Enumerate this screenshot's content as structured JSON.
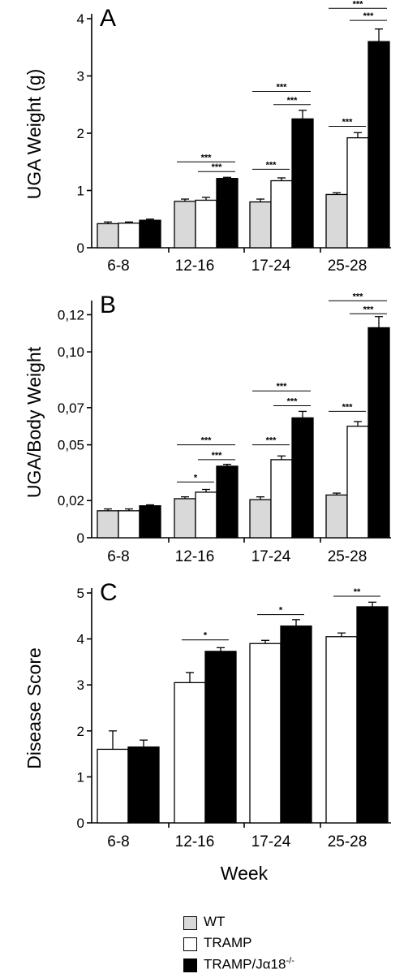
{
  "colors": {
    "wt": "#d9d9d9",
    "tramp": "#ffffff",
    "tramp_ja18": "#000000"
  },
  "legend": {
    "items": [
      {
        "key": "wt",
        "label": "WT",
        "sup": ""
      },
      {
        "key": "tramp",
        "label": "TRAMP",
        "sup": ""
      },
      {
        "key": "tramp_ja18",
        "label": "TRAMP/Jα18",
        "sup": "-/-"
      }
    ]
  },
  "chart_data": [
    {
      "type": "bar",
      "panel_label": "A",
      "ylabel": "UGA Weight (g)",
      "xlabel": "",
      "ylim": [
        0,
        4
      ],
      "yticks": [
        0,
        1,
        2,
        3,
        4
      ],
      "ytick_labels": [
        "0",
        "1",
        "2",
        "3",
        "4"
      ],
      "categories": [
        "6-8",
        "12-16",
        "17-24",
        "25-28"
      ],
      "series": [
        {
          "key": "wt",
          "name": "WT",
          "values": [
            0.42,
            0.81,
            0.8,
            0.93
          ],
          "errors": [
            0.03,
            0.04,
            0.05,
            0.03
          ]
        },
        {
          "key": "tramp",
          "name": "TRAMP",
          "values": [
            0.43,
            0.83,
            1.17,
            1.92
          ],
          "errors": [
            0.02,
            0.05,
            0.05,
            0.09
          ]
        },
        {
          "key": "tramp_ja18",
          "name": "TRAMP/Jα18-/-",
          "values": [
            0.48,
            1.21,
            2.25,
            3.6
          ],
          "errors": [
            0.02,
            0.02,
            0.15,
            0.22
          ]
        }
      ],
      "significance": [
        {
          "category": 1,
          "from": "wt",
          "to": "tramp_ja18",
          "label": "***",
          "level": 1.5
        },
        {
          "category": 1,
          "from": "tramp",
          "to": "tramp_ja18",
          "label": "***",
          "level": 1.33
        },
        {
          "category": 2,
          "from": "wt",
          "to": "tramp_ja18",
          "label": "***",
          "level": 2.73
        },
        {
          "category": 2,
          "from": "tramp",
          "to": "tramp_ja18",
          "label": "***",
          "level": 2.5
        },
        {
          "category": 2,
          "from": "wt",
          "to": "tramp",
          "label": "***",
          "level": 1.37
        },
        {
          "category": 3,
          "from": "wt",
          "to": "tramp_ja18",
          "label": "***",
          "level": 4.18
        },
        {
          "category": 3,
          "from": "tramp",
          "to": "tramp_ja18",
          "label": "***",
          "level": 3.97
        },
        {
          "category": 3,
          "from": "wt",
          "to": "tramp",
          "label": "***",
          "level": 2.12
        }
      ]
    },
    {
      "type": "bar",
      "panel_label": "B",
      "ylabel": "UGA/Body Weight",
      "xlabel": "",
      "ylim": [
        0,
        0.125
      ],
      "yticks": [
        0,
        0.02,
        0.05,
        0.07,
        0.1,
        0.12
      ],
      "ytick_labels": [
        "0",
        "0,02",
        "0,05",
        "0,07",
        "0,10",
        "0,12"
      ],
      "categories": [
        "6-8",
        "12-16",
        "17-24",
        "25-28"
      ],
      "series": [
        {
          "key": "wt",
          "name": "WT",
          "values": [
            0.0145,
            0.021,
            0.0205,
            0.023
          ],
          "errors": [
            0.001,
            0.001,
            0.0015,
            0.001
          ]
        },
        {
          "key": "tramp",
          "name": "TRAMP",
          "values": [
            0.0145,
            0.0245,
            0.042,
            0.06
          ],
          "errors": [
            0.001,
            0.0015,
            0.002,
            0.0025
          ]
        },
        {
          "key": "tramp_ja18",
          "name": "TRAMP/Jα18-/-",
          "values": [
            0.0172,
            0.0385,
            0.0645,
            0.113
          ],
          "errors": [
            0.0005,
            0.001,
            0.0035,
            0.006
          ]
        }
      ],
      "significance": [
        {
          "category": 1,
          "from": "wt",
          "to": "tramp",
          "label": "*",
          "level": 0.03
        },
        {
          "category": 1,
          "from": "wt",
          "to": "tramp_ja18",
          "label": "***",
          "level": 0.05
        },
        {
          "category": 1,
          "from": "tramp",
          "to": "tramp_ja18",
          "label": "***",
          "level": 0.042
        },
        {
          "category": 2,
          "from": "wt",
          "to": "tramp",
          "label": "***",
          "level": 0.05
        },
        {
          "category": 2,
          "from": "wt",
          "to": "tramp_ja18",
          "label": "***",
          "level": 0.079
        },
        {
          "category": 2,
          "from": "tramp",
          "to": "tramp_ja18",
          "label": "***",
          "level": 0.071
        },
        {
          "category": 3,
          "from": "wt",
          "to": "tramp",
          "label": "***",
          "level": 0.068
        },
        {
          "category": 3,
          "from": "wt",
          "to": "tramp_ja18",
          "label": "***",
          "level": 0.1275
        },
        {
          "category": 3,
          "from": "tramp",
          "to": "tramp_ja18",
          "label": "***",
          "level": 0.1205
        }
      ]
    },
    {
      "type": "bar",
      "panel_label": "C",
      "ylabel": "Disease Score",
      "xlabel": "Week",
      "ylim": [
        0,
        5
      ],
      "yticks": [
        0,
        1,
        2,
        3,
        4,
        5
      ],
      "ytick_labels": [
        "0",
        "1",
        "2",
        "3",
        "4",
        "5"
      ],
      "categories": [
        "6-8",
        "12-16",
        "17-24",
        "25-28"
      ],
      "series": [
        {
          "key": "tramp",
          "name": "TRAMP",
          "values": [
            1.6,
            3.05,
            3.9,
            4.05
          ],
          "errors": [
            0.4,
            0.22,
            0.07,
            0.08
          ]
        },
        {
          "key": "tramp_ja18",
          "name": "TRAMP/Jα18-/-",
          "values": [
            1.65,
            3.73,
            4.28,
            4.7
          ],
          "errors": [
            0.15,
            0.08,
            0.14,
            0.1
          ]
        }
      ],
      "significance": [
        {
          "category": 1,
          "from": "tramp",
          "to": "tramp_ja18",
          "label": "*",
          "level": 3.98
        },
        {
          "category": 2,
          "from": "tramp",
          "to": "tramp_ja18",
          "label": "*",
          "level": 4.53
        },
        {
          "category": 3,
          "from": "tramp",
          "to": "tramp_ja18",
          "label": "**",
          "level": 4.93
        }
      ]
    }
  ]
}
